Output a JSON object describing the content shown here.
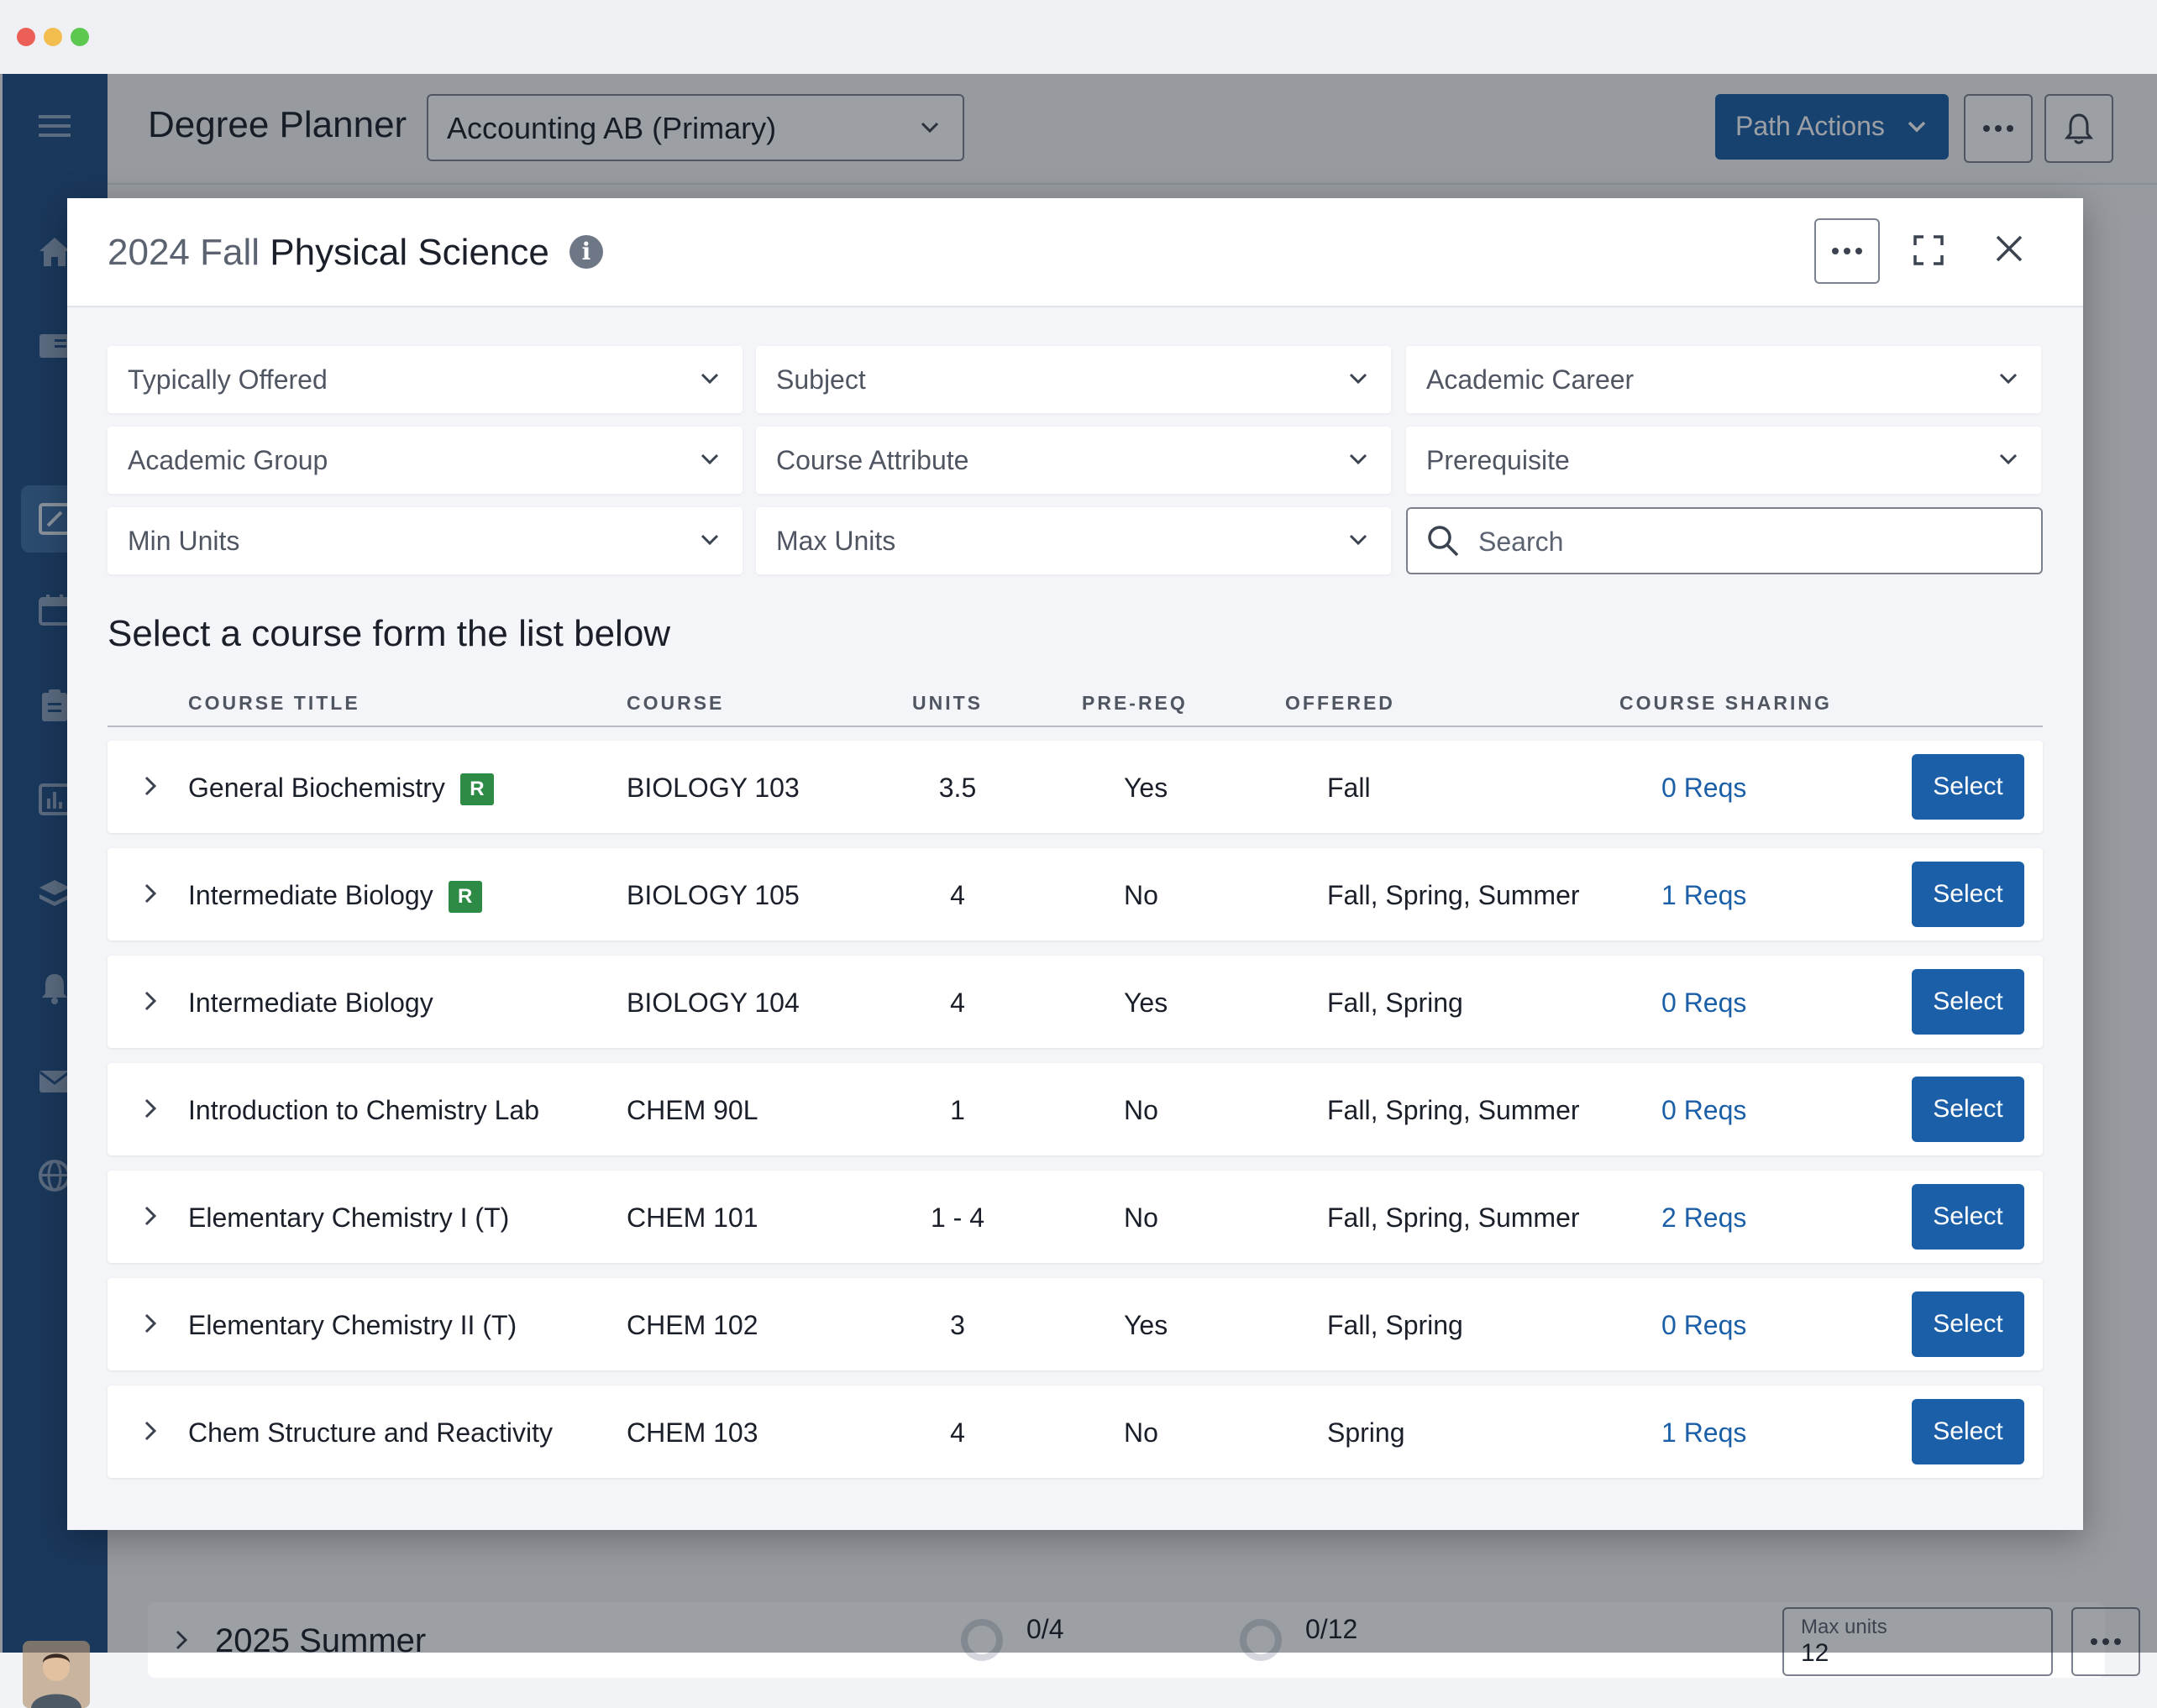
{
  "app": {
    "title": "Degree Planner",
    "plan_selector": "Accounting AB (Primary)",
    "path_actions_label": "Path Actions"
  },
  "background": {
    "term_title": "2025 Summer",
    "courses_progress": "0/4",
    "units_progress": "0/12",
    "max_units_label": "Max units",
    "max_units_value": "12"
  },
  "modal": {
    "term": "2024 Fall",
    "subject": "Physical Science",
    "filters": [
      {
        "label": "Typically Offered"
      },
      {
        "label": "Subject"
      },
      {
        "label": "Academic Career"
      },
      {
        "label": "Academic Group"
      },
      {
        "label": "Course Attribute"
      },
      {
        "label": "Prerequisite"
      },
      {
        "label": "Min Units"
      },
      {
        "label": "Max Units"
      }
    ],
    "search_placeholder": "Search",
    "list_heading": "Select a course form the list below",
    "columns": {
      "title": "COURSE TITLE",
      "course": "COURSE",
      "units": "UNITS",
      "prereq": "PRE-REQ",
      "offered": "OFFERED",
      "sharing": "COURSE SHARING"
    },
    "select_label": "Select",
    "courses": [
      {
        "title": "General Biochemistry",
        "badge": "R",
        "course": "BIOLOGY 103",
        "units": "3.5",
        "prereq": "Yes",
        "offered": "Fall",
        "sharing": "0 Reqs"
      },
      {
        "title": "Intermediate Biology",
        "badge": "R",
        "course": "BIOLOGY 105",
        "units": "4",
        "prereq": "No",
        "offered": "Fall, Spring, Summer",
        "sharing": "1 Reqs"
      },
      {
        "title": "Intermediate Biology",
        "badge": "",
        "course": "BIOLOGY 104",
        "units": "4",
        "prereq": "Yes",
        "offered": "Fall, Spring",
        "sharing": "0 Reqs"
      },
      {
        "title": "Introduction to Chemistry Lab",
        "badge": "",
        "course": "CHEM 90L",
        "units": "1",
        "prereq": "No",
        "offered": "Fall, Spring, Summer",
        "sharing": "0 Reqs"
      },
      {
        "title": "Elementary Chemistry I (T)",
        "badge": "",
        "course": "CHEM 101",
        "units": "1 - 4",
        "prereq": "No",
        "offered": "Fall, Spring, Summer",
        "sharing": "2 Reqs"
      },
      {
        "title": "Elementary Chemistry II (T)",
        "badge": "",
        "course": "CHEM 102",
        "units": "3",
        "prereq": "Yes",
        "offered": "Fall, Spring",
        "sharing": "0 Reqs"
      },
      {
        "title": "Chem Structure and Reactivity",
        "badge": "",
        "course": "CHEM 103",
        "units": "4",
        "prereq": "No",
        "offered": "Spring",
        "sharing": "1 Reqs"
      }
    ]
  },
  "colors": {
    "primary": "#1b5fa8",
    "sidebar": "#1f4f86",
    "badge": "#2e8b45"
  },
  "icons": {
    "sidebar": [
      "menu-icon",
      "home-icon",
      "catalog-icon",
      "planner-icon",
      "calendar-icon",
      "clipboard-icon",
      "chart-icon",
      "graduation-icon",
      "alert-icon",
      "mail-icon",
      "globe-icon"
    ]
  }
}
